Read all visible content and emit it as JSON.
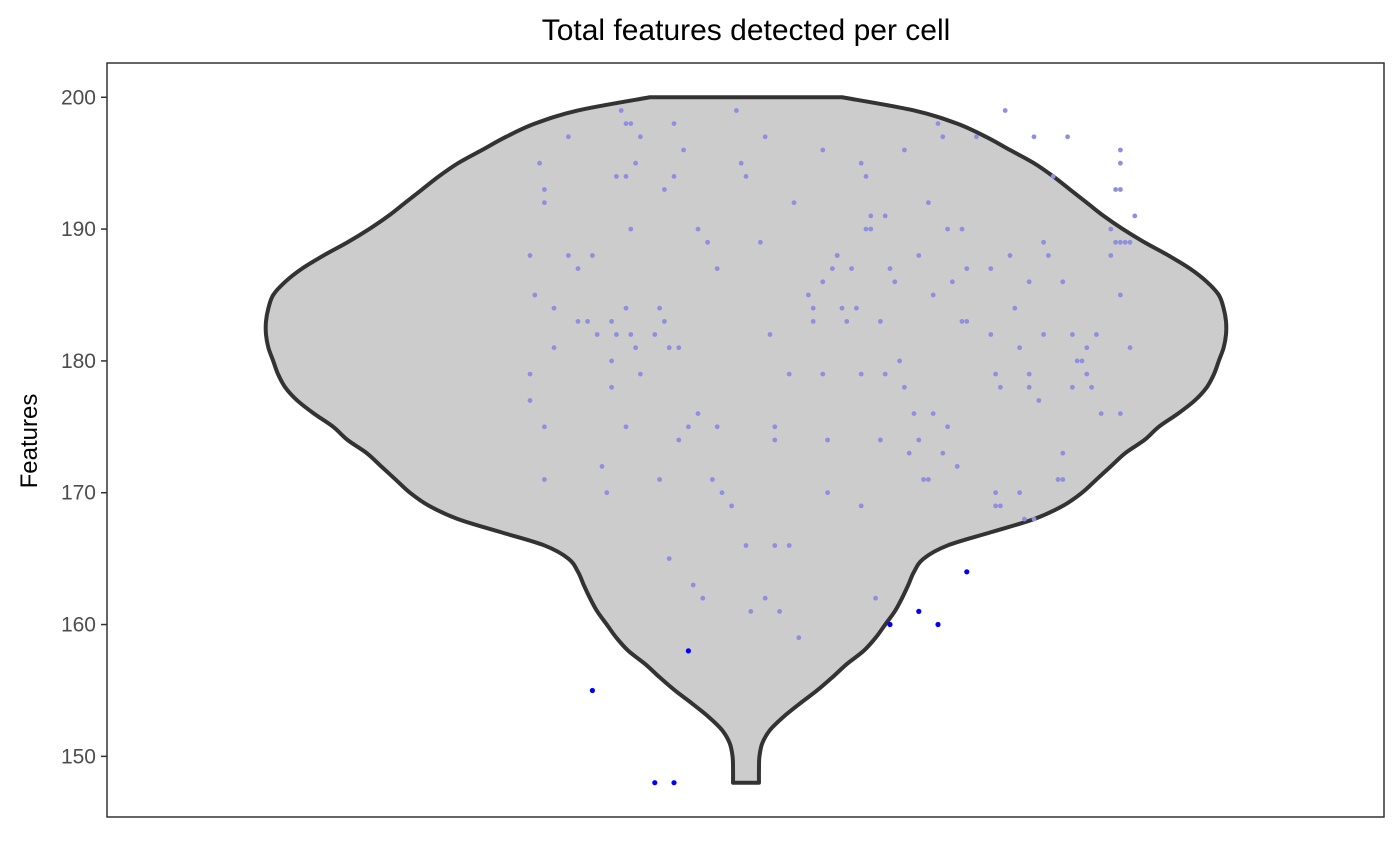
{
  "chart_data": {
    "type": "violin",
    "title": "Total features detected per cell",
    "xlabel": "",
    "ylabel": "Features",
    "ylim": [
      145.4,
      202.6
    ],
    "yticks": [
      150,
      160,
      170,
      180,
      190,
      200
    ],
    "yticklabels": [
      "150",
      "160",
      "170",
      "180",
      "190",
      "200"
    ],
    "grid": false,
    "legend": "none",
    "colors": {
      "violin_fill": "#cccccc",
      "violin_outline": "#333333",
      "points_in": "#8f8fdf",
      "points_out": "#0000ff",
      "panel_border": "#333333"
    },
    "violin": {
      "min": 148,
      "max": 200,
      "density_y": [
        148,
        149,
        150,
        151,
        152,
        153,
        154,
        155,
        156,
        157,
        158,
        159,
        160,
        161,
        162,
        163,
        164,
        165,
        166,
        167,
        168,
        169,
        170,
        171,
        172,
        173,
        174,
        175,
        176,
        177,
        178,
        179,
        180,
        181,
        182,
        183,
        184,
        185,
        186,
        187,
        188,
        189,
        190,
        191,
        192,
        193,
        194,
        195,
        196,
        197,
        198,
        199,
        200
      ],
      "density_w": [
        0.027,
        0.027,
        0.028,
        0.034,
        0.05,
        0.078,
        0.112,
        0.148,
        0.18,
        0.21,
        0.245,
        0.27,
        0.29,
        0.31,
        0.325,
        0.338,
        0.35,
        0.37,
        0.42,
        0.51,
        0.6,
        0.66,
        0.7,
        0.73,
        0.76,
        0.79,
        0.83,
        0.86,
        0.9,
        0.935,
        0.96,
        0.975,
        0.985,
        0.995,
        1.0,
        1.0,
        0.995,
        0.985,
        0.96,
        0.925,
        0.88,
        0.83,
        0.785,
        0.745,
        0.71,
        0.675,
        0.64,
        0.6,
        0.55,
        0.5,
        0.44,
        0.35,
        0.2
      ]
    },
    "points_inside": [
      [
        -0.45,
        188
      ],
      [
        -0.44,
        185
      ],
      [
        -0.45,
        179
      ],
      [
        -0.45,
        177
      ],
      [
        -0.43,
        195
      ],
      [
        -0.42,
        193
      ],
      [
        -0.42,
        192
      ],
      [
        -0.42,
        175
      ],
      [
        -0.42,
        171
      ],
      [
        -0.4,
        184
      ],
      [
        -0.4,
        181
      ],
      [
        -0.37,
        197
      ],
      [
        -0.37,
        188
      ],
      [
        -0.35,
        187
      ],
      [
        -0.35,
        183
      ],
      [
        -0.33,
        183
      ],
      [
        -0.32,
        188
      ],
      [
        -0.31,
        182
      ],
      [
        -0.3,
        172
      ],
      [
        -0.29,
        170
      ],
      [
        -0.28,
        183
      ],
      [
        -0.28,
        180
      ],
      [
        -0.28,
        178
      ],
      [
        -0.27,
        194
      ],
      [
        -0.27,
        182
      ],
      [
        -0.26,
        199
      ],
      [
        -0.25,
        198
      ],
      [
        -0.25,
        194
      ],
      [
        -0.25,
        184
      ],
      [
        -0.25,
        175
      ],
      [
        -0.24,
        198
      ],
      [
        -0.24,
        190
      ],
      [
        -0.24,
        182
      ],
      [
        -0.23,
        195
      ],
      [
        -0.23,
        181
      ],
      [
        -0.22,
        197
      ],
      [
        -0.22,
        179
      ],
      [
        -0.19,
        182
      ],
      [
        -0.18,
        184
      ],
      [
        -0.18,
        171
      ],
      [
        -0.17,
        193
      ],
      [
        -0.17,
        183
      ],
      [
        -0.16,
        165
      ],
      [
        -0.16,
        181
      ],
      [
        -0.15,
        194
      ],
      [
        -0.15,
        198
      ],
      [
        -0.14,
        174
      ],
      [
        -0.14,
        181
      ],
      [
        -0.13,
        196
      ],
      [
        -0.12,
        175
      ],
      [
        -0.11,
        163
      ],
      [
        -0.1,
        190
      ],
      [
        -0.1,
        176
      ],
      [
        -0.09,
        162
      ],
      [
        -0.08,
        189
      ],
      [
        -0.07,
        171
      ],
      [
        -0.06,
        187
      ],
      [
        -0.06,
        175
      ],
      [
        -0.05,
        170
      ],
      [
        -0.03,
        169
      ],
      [
        -0.02,
        199
      ],
      [
        -0.01,
        195
      ],
      [
        0.0,
        166
      ],
      [
        0.0,
        194
      ],
      [
        0.01,
        161
      ],
      [
        0.03,
        189
      ],
      [
        0.04,
        197
      ],
      [
        0.04,
        162
      ],
      [
        0.05,
        182
      ],
      [
        0.06,
        175
      ],
      [
        0.06,
        174
      ],
      [
        0.06,
        166
      ],
      [
        0.07,
        161
      ],
      [
        0.09,
        179
      ],
      [
        0.09,
        166
      ],
      [
        0.1,
        192
      ],
      [
        0.11,
        159
      ],
      [
        0.13,
        185
      ],
      [
        0.14,
        183
      ],
      [
        0.14,
        184
      ],
      [
        0.16,
        196
      ],
      [
        0.16,
        179
      ],
      [
        0.16,
        186
      ],
      [
        0.17,
        174
      ],
      [
        0.17,
        170
      ],
      [
        0.18,
        187
      ],
      [
        0.19,
        188
      ],
      [
        0.19,
        188
      ],
      [
        0.2,
        184
      ],
      [
        0.21,
        183
      ],
      [
        0.22,
        187
      ],
      [
        0.23,
        184
      ],
      [
        0.24,
        179
      ],
      [
        0.24,
        169
      ],
      [
        0.24,
        195
      ],
      [
        0.25,
        194
      ],
      [
        0.25,
        190
      ],
      [
        0.26,
        191
      ],
      [
        0.26,
        190
      ],
      [
        0.27,
        162
      ],
      [
        0.28,
        183
      ],
      [
        0.28,
        174
      ],
      [
        0.29,
        179
      ],
      [
        0.29,
        191
      ],
      [
        0.3,
        187
      ],
      [
        0.31,
        186
      ],
      [
        0.32,
        180
      ],
      [
        0.33,
        178
      ],
      [
        0.33,
        196
      ],
      [
        0.34,
        173
      ],
      [
        0.35,
        176
      ],
      [
        0.36,
        188
      ],
      [
        0.36,
        174
      ],
      [
        0.37,
        171
      ],
      [
        0.38,
        171
      ],
      [
        0.38,
        192
      ],
      [
        0.39,
        176
      ],
      [
        0.39,
        185
      ],
      [
        0.4,
        198
      ],
      [
        0.41,
        197
      ],
      [
        0.41,
        173
      ],
      [
        0.42,
        190
      ],
      [
        0.42,
        175
      ],
      [
        0.43,
        186
      ],
      [
        0.44,
        172
      ],
      [
        0.45,
        190
      ],
      [
        0.45,
        183
      ],
      [
        0.46,
        187
      ],
      [
        0.46,
        183
      ],
      [
        0.48,
        197
      ],
      [
        0.51,
        182
      ],
      [
        0.51,
        187
      ],
      [
        0.52,
        179
      ],
      [
        0.52,
        169
      ],
      [
        0.52,
        170
      ],
      [
        0.53,
        178
      ],
      [
        0.53,
        169
      ],
      [
        0.54,
        199
      ],
      [
        0.55,
        188
      ],
      [
        0.56,
        184
      ],
      [
        0.57,
        181
      ],
      [
        0.57,
        170
      ],
      [
        0.58,
        168
      ],
      [
        0.59,
        186
      ],
      [
        0.59,
        178
      ],
      [
        0.59,
        179
      ],
      [
        0.6,
        197
      ],
      [
        0.6,
        168
      ],
      [
        0.61,
        177
      ],
      [
        0.62,
        182
      ],
      [
        0.62,
        189
      ],
      [
        0.63,
        188
      ],
      [
        0.64,
        194
      ],
      [
        0.65,
        171
      ],
      [
        0.66,
        186
      ],
      [
        0.66,
        171
      ],
      [
        0.66,
        173
      ],
      [
        0.67,
        197
      ],
      [
        0.68,
        182
      ],
      [
        0.68,
        178
      ],
      [
        0.69,
        180
      ],
      [
        0.7,
        180
      ],
      [
        0.71,
        179
      ],
      [
        0.71,
        181
      ],
      [
        0.72,
        178
      ],
      [
        0.73,
        182
      ],
      [
        0.74,
        176
      ],
      [
        0.76,
        188
      ],
      [
        0.76,
        190
      ],
      [
        0.77,
        193
      ],
      [
        0.77,
        189
      ],
      [
        0.78,
        196
      ],
      [
        0.78,
        195
      ],
      [
        0.78,
        193
      ],
      [
        0.78,
        189
      ],
      [
        0.78,
        185
      ],
      [
        0.78,
        176
      ],
      [
        0.79,
        189
      ],
      [
        0.8,
        181
      ],
      [
        0.8,
        189
      ],
      [
        0.81,
        191
      ]
    ],
    "points_outliers": [
      [
        -0.32,
        155
      ],
      [
        -0.19,
        148
      ],
      [
        -0.15,
        148
      ],
      [
        -0.12,
        158
      ],
      [
        0.3,
        160
      ],
      [
        0.36,
        161
      ],
      [
        0.4,
        160
      ],
      [
        0.46,
        164
      ]
    ]
  }
}
